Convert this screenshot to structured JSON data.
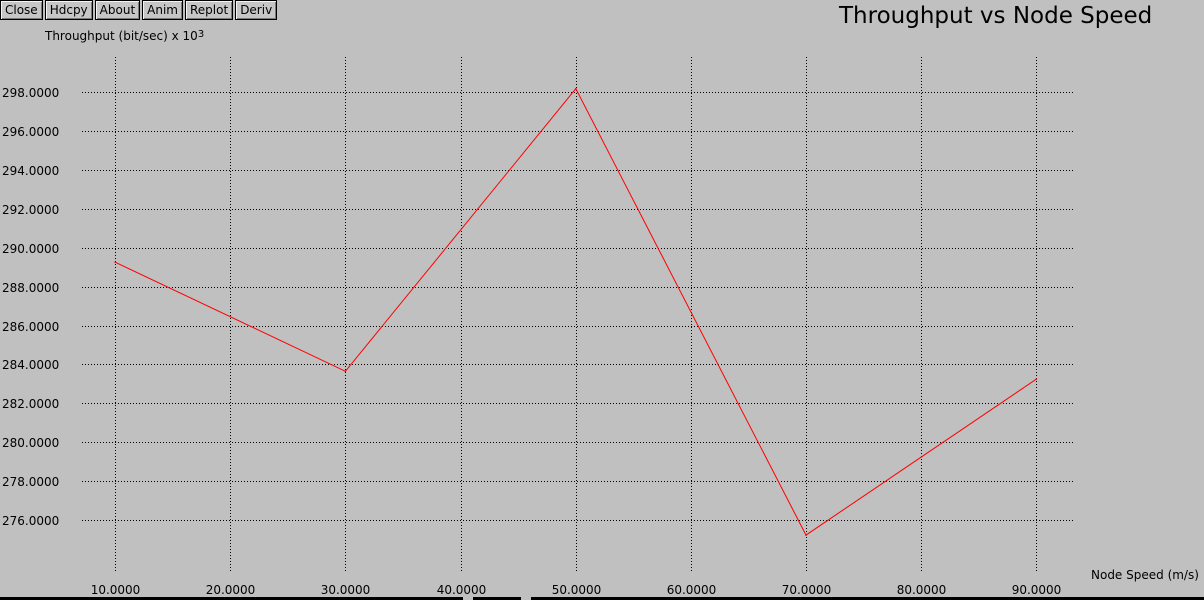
{
  "toolbar": {
    "buttons": [
      "Close",
      "Hdcpy",
      "About",
      "Anim",
      "Replot",
      "Deriv"
    ]
  },
  "colors": {
    "background": "#c0c0c0",
    "series": "#ff0000",
    "grid": "#000000"
  },
  "chart_data": {
    "type": "line",
    "title": "Throughput vs Node Speed",
    "ylabel": "Throughput (bit/sec) x 10",
    "ylabel_exponent": "3",
    "xlabel": "Node Speed (m/s)",
    "grid": "dotted",
    "xlim": [
      0,
      100
    ],
    "ylim": [
      274.56,
      299.34
    ],
    "x_ticks": [
      10,
      20,
      30,
      40,
      50,
      60,
      70,
      80,
      90
    ],
    "x_tick_labels": [
      "10.0000",
      "20.0000",
      "30.0000",
      "40.0000",
      "50.0000",
      "60.0000",
      "70.0000",
      "80.0000",
      "90.0000"
    ],
    "y_ticks": [
      276,
      278,
      280,
      282,
      284,
      286,
      288,
      290,
      292,
      294,
      296,
      298
    ],
    "y_tick_labels": [
      "276.0000",
      "278.0000",
      "280.0000",
      "282.0000",
      "284.0000",
      "286.0000",
      "288.0000",
      "290.0000",
      "292.0000",
      "294.0000",
      "296.0000",
      "298.0000"
    ],
    "series": [
      {
        "color": "#ff0000",
        "x": [
          10,
          30,
          50,
          70,
          90
        ],
        "y": [
          289.25,
          283.65,
          298.15,
          275.25,
          283.25
        ]
      }
    ]
  }
}
